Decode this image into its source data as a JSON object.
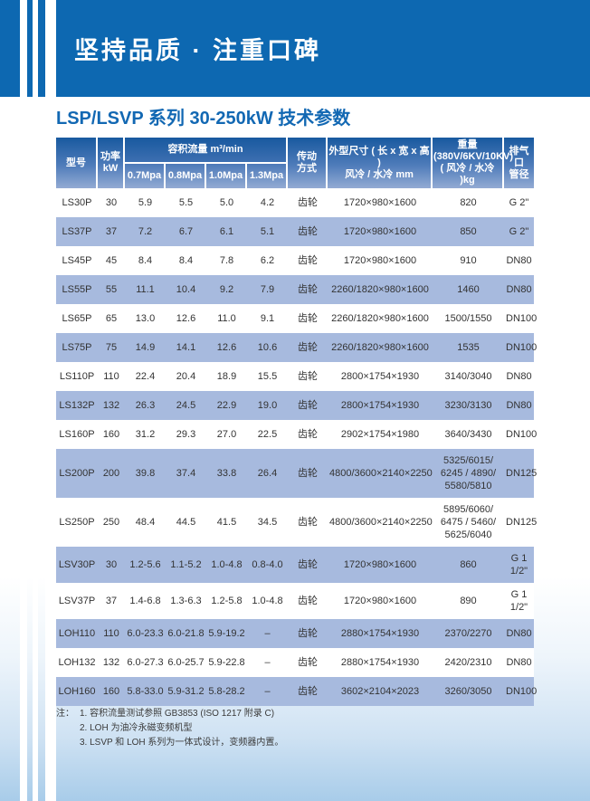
{
  "banner": {
    "title": "坚持品质 · 注重口碑"
  },
  "page_title": "LSP/LSVP 系列 30-250kW 技术参数",
  "colors": {
    "banner_blue": "#0d68b1",
    "title_blue": "#1268b3",
    "header_gradient_top": "#18599f",
    "header_gradient_bottom": "#93abd3",
    "shaded_row": "#a7bade",
    "page_bottom_tint": "#a8cce9"
  },
  "table": {
    "header": {
      "model": "型号",
      "power": "功率\nkW",
      "flow_group": "容积流量 m³/min",
      "pressures": [
        "0.7Mpa",
        "0.8Mpa",
        "1.0Mpa",
        "1.3Mpa"
      ],
      "drive": "传动\n方式",
      "dims": "外型尺寸 ( 长 x 宽 x 高 )\n风冷 / 水冷 mm",
      "weight": "重量\n(380V/6KV/10KV)\n( 风冷 / 水冷 )kg",
      "port": "排气口\n管径"
    },
    "rows": [
      {
        "model": "LS30P",
        "power": "30",
        "f07": "5.9",
        "f08": "5.5",
        "f10": "5.0",
        "f13": "4.2",
        "drive": "齿轮",
        "dims": "1720×980×1600",
        "weight": "820",
        "port": "G 2\"",
        "shaded": false
      },
      {
        "model": "LS37P",
        "power": "37",
        "f07": "7.2",
        "f08": "6.7",
        "f10": "6.1",
        "f13": "5.1",
        "drive": "齿轮",
        "dims": "1720×980×1600",
        "weight": "850",
        "port": "G 2\"",
        "shaded": true
      },
      {
        "model": "LS45P",
        "power": "45",
        "f07": "8.4",
        "f08": "8.4",
        "f10": "7.8",
        "f13": "6.2",
        "drive": "齿轮",
        "dims": "1720×980×1600",
        "weight": "910",
        "port": "DN80",
        "shaded": false
      },
      {
        "model": "LS55P",
        "power": "55",
        "f07": "11.1",
        "f08": "10.4",
        "f10": "9.2",
        "f13": "7.9",
        "drive": "齿轮",
        "dims": "2260/1820×980×1600",
        "weight": "1460",
        "port": "DN80",
        "shaded": true
      },
      {
        "model": "LS65P",
        "power": "65",
        "f07": "13.0",
        "f08": "12.6",
        "f10": "11.0",
        "f13": "9.1",
        "drive": "齿轮",
        "dims": "2260/1820×980×1600",
        "weight": "1500/1550",
        "port": "DN100",
        "shaded": false
      },
      {
        "model": "LS75P",
        "power": "75",
        "f07": "14.9",
        "f08": "14.1",
        "f10": "12.6",
        "f13": "10.6",
        "drive": "齿轮",
        "dims": "2260/1820×980×1600",
        "weight": "1535",
        "port": "DN100",
        "shaded": true
      },
      {
        "model": "LS110P",
        "power": "110",
        "f07": "22.4",
        "f08": "20.4",
        "f10": "18.9",
        "f13": "15.5",
        "drive": "齿轮",
        "dims": "2800×1754×1930",
        "weight": "3140/3040",
        "port": "DN80",
        "shaded": false
      },
      {
        "model": "LS132P",
        "power": "132",
        "f07": "26.3",
        "f08": "24.5",
        "f10": "22.9",
        "f13": "19.0",
        "drive": "齿轮",
        "dims": "2800×1754×1930",
        "weight": "3230/3130",
        "port": "DN80",
        "shaded": true
      },
      {
        "model": "LS160P",
        "power": "160",
        "f07": "31.2",
        "f08": "29.3",
        "f10": "27.0",
        "f13": "22.5",
        "drive": "齿轮",
        "dims": "2902×1754×1980",
        "weight": "3640/3430",
        "port": "DN100",
        "shaded": false
      },
      {
        "model": "LS200P",
        "power": "200",
        "f07": "39.8",
        "f08": "37.4",
        "f10": "33.8",
        "f13": "26.4",
        "drive": "齿轮",
        "dims": "4800/3600×2140×2250",
        "weight": "5325/6015/\n6245 / 4890/\n5580/5810",
        "port": "DN125",
        "shaded": true
      },
      {
        "model": "LS250P",
        "power": "250",
        "f07": "48.4",
        "f08": "44.5",
        "f10": "41.5",
        "f13": "34.5",
        "drive": "齿轮",
        "dims": "4800/3600×2140×2250",
        "weight": "5895/6060/\n6475 / 5460/\n5625/6040",
        "port": "DN125",
        "shaded": false
      },
      {
        "model": "LSV30P",
        "power": "30",
        "f07": "1.2-5.6",
        "f08": "1.1-5.2",
        "f10": "1.0-4.8",
        "f13": "0.8-4.0",
        "drive": "齿轮",
        "dims": "1720×980×1600",
        "weight": "860",
        "port": "G 1\n1/2\"",
        "shaded": true
      },
      {
        "model": "LSV37P",
        "power": "37",
        "f07": "1.4-6.8",
        "f08": "1.3-6.3",
        "f10": "1.2-5.8",
        "f13": "1.0-4.8",
        "drive": "齿轮",
        "dims": "1720×980×1600",
        "weight": "890",
        "port": "G 1\n1/2\"",
        "shaded": false
      },
      {
        "model": "LOH110",
        "power": "110",
        "f07": "6.0-23.3",
        "f08": "6.0-21.8",
        "f10": "5.9-19.2",
        "f13": "–",
        "drive": "齿轮",
        "dims": "2880×1754×1930",
        "weight": "2370/2270",
        "port": "DN80",
        "shaded": true
      },
      {
        "model": "LOH132",
        "power": "132",
        "f07": "6.0-27.3",
        "f08": "6.0-25.7",
        "f10": "5.9-22.8",
        "f13": "–",
        "drive": "齿轮",
        "dims": "2880×1754×1930",
        "weight": "2420/2310",
        "port": "DN80",
        "shaded": false
      },
      {
        "model": "LOH160",
        "power": "160",
        "f07": "5.8-33.0",
        "f08": "5.9-31.2",
        "f10": "5.8-28.2",
        "f13": "–",
        "drive": "齿轮",
        "dims": "3602×2104×2023",
        "weight": "3260/3050",
        "port": "DN100",
        "shaded": true
      }
    ]
  },
  "notes": {
    "label": "注：",
    "items": [
      "1. 容积流量测试参照 GB3853 (ISO 1217 附录 C)",
      "2. LOH 为油冷永磁变频机型",
      "3. LSVP 和 LOH 系列为一体式设计，变频器内置。"
    ]
  }
}
